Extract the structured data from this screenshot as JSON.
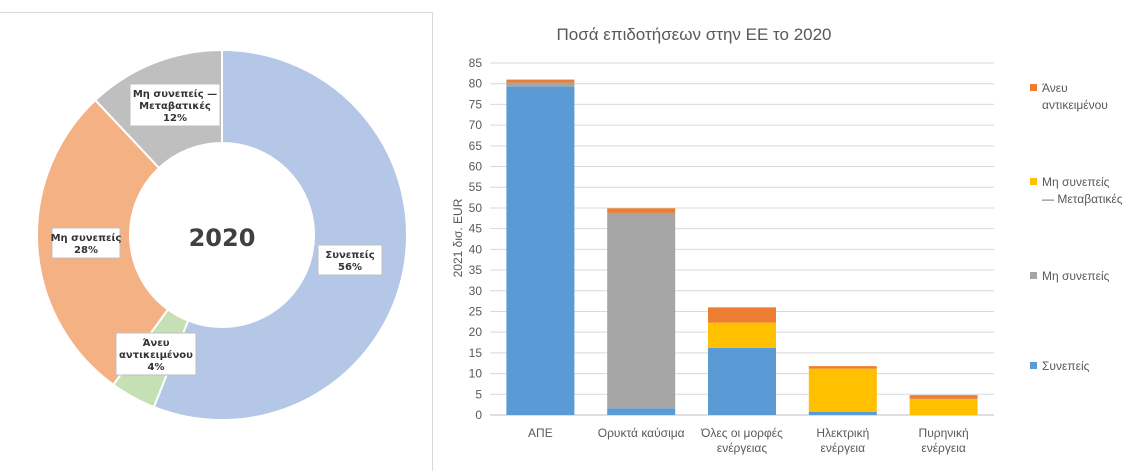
{
  "colors": {
    "consistent": "#b4c7e7",
    "nonconsistent": "#f4b183",
    "transitional": "#bfbfbf",
    "untargeted": "#c5e0b4",
    "bar_consistent": "#5b9bd5",
    "bar_nonconsistent": "#a5a5a5",
    "bar_transitional": "#ffc000",
    "bar_untargeted": "#ed7d31"
  },
  "chart_data": [
    {
      "type": "pie",
      "title": "",
      "center_label": "2020",
      "slices": [
        {
          "key": "consistent",
          "label": "Συνεπείς",
          "percent_label": "56%",
          "value": 56
        },
        {
          "key": "untargeted",
          "label": "Άνευ αντικειμένου",
          "percent_label": "4%",
          "value": 4
        },
        {
          "key": "nonconsistent",
          "label": "Μη συνεπείς",
          "percent_label": "28%",
          "value": 28
        },
        {
          "key": "transitional",
          "label": "Μη συνεπείς — Μεταβατικές",
          "percent_label": "12%",
          "value": 12
        }
      ]
    },
    {
      "type": "bar",
      "stacked": true,
      "title": "Ποσά επιδοτήσεων στην ΕΕ το 2020",
      "ylabel": "2021 δισ. EUR",
      "xlabel": "",
      "ylim": [
        0,
        85
      ],
      "yticks": [
        "0",
        "5",
        "10",
        "15",
        "20",
        "25",
        "30",
        "35",
        "40",
        "45",
        "50",
        "55",
        "60",
        "65",
        "70",
        "75",
        "80",
        "85"
      ],
      "grid": true,
      "legend_position": "right",
      "categories": [
        [
          "ΑΠΕ"
        ],
        [
          "Ορυκτά καύσιμα"
        ],
        [
          "Όλες οι μορφές",
          "ενέργειας"
        ],
        [
          "Ηλεκτρική",
          "ενέργεια"
        ],
        [
          "Πυρηνική",
          "ενέργεια"
        ]
      ],
      "series": [
        {
          "key": "bar_consistent",
          "name": "Συνεπείς",
          "values": [
            79.3,
            1.6,
            16.2,
            0.8,
            0.0
          ]
        },
        {
          "key": "bar_nonconsistent",
          "name": "Μη συνεπείς",
          "values": [
            1.0,
            47.2,
            0.0,
            0.0,
            0.0
          ]
        },
        {
          "key": "bar_transitional",
          "name": "Μη συνεπείς — Μεταβατικές",
          "values": [
            0.0,
            0.0,
            6.1,
            10.4,
            3.9
          ]
        },
        {
          "key": "bar_untargeted",
          "name": "Άνευ αντικειμένου",
          "values": [
            0.7,
            1.1,
            3.7,
            0.6,
            0.9
          ]
        }
      ],
      "legend": [
        {
          "key": "bar_untargeted",
          "lines": [
            "Άνευ",
            "αντικειμένου"
          ]
        },
        {
          "key": "bar_transitional",
          "lines": [
            "Μη συνεπείς",
            "— Μεταβατικές"
          ]
        },
        {
          "key": "bar_nonconsistent",
          "lines": [
            "Μη συνεπείς"
          ]
        },
        {
          "key": "bar_consistent",
          "lines": [
            "Συνεπείς"
          ]
        }
      ]
    }
  ]
}
